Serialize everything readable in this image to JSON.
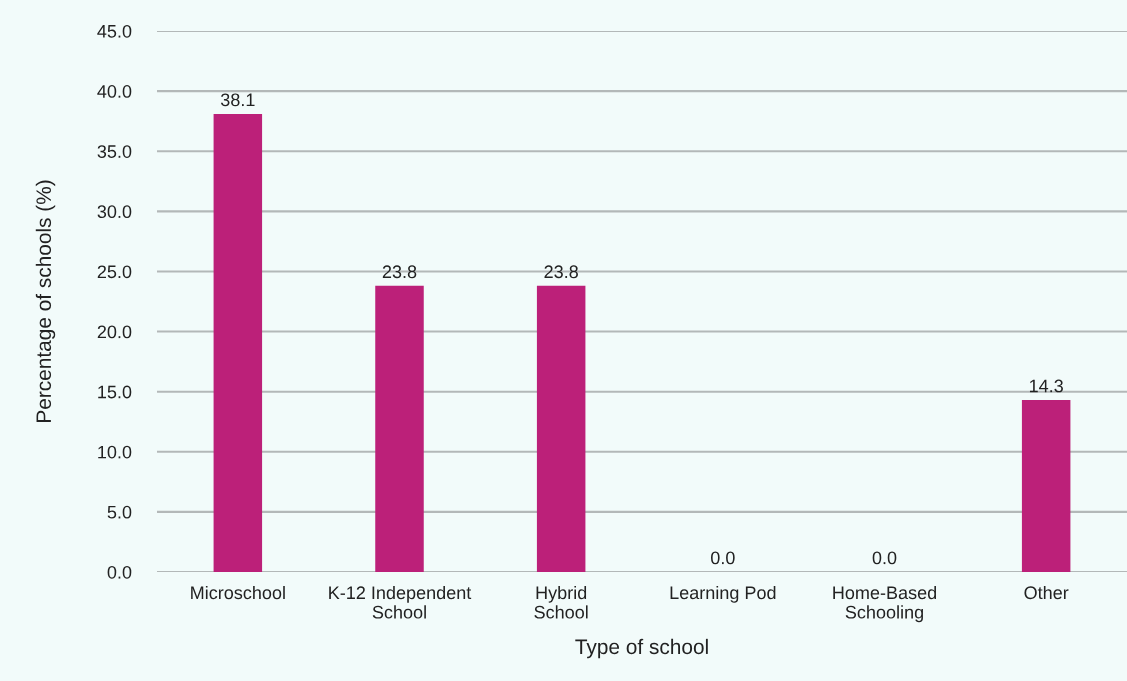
{
  "chart_data": {
    "type": "bar",
    "xlabel": "Type of school",
    "ylabel": "Percentage of schools (%)",
    "categories": [
      "Microschool",
      "K-12 Independent\nSchool",
      "Hybrid\nSchool",
      "Learning Pod",
      "Home-Based\nSchooling",
      "Other"
    ],
    "values": [
      38.1,
      23.8,
      23.8,
      0.0,
      0.0,
      14.3
    ],
    "value_labels": [
      "38.1",
      "23.8",
      "23.8",
      "0.0",
      "0.0",
      "14.3"
    ],
    "color": "#bc2079",
    "ylim": [
      0,
      45
    ],
    "yticks": [
      {
        "value": 0,
        "label": "0.0"
      },
      {
        "value": 5,
        "label": "5.0"
      },
      {
        "value": 10,
        "label": "10.0"
      },
      {
        "value": 15,
        "label": "15.0"
      },
      {
        "value": 20,
        "label": "20.0"
      },
      {
        "value": 25,
        "label": "25.0"
      },
      {
        "value": 30,
        "label": "30.0"
      },
      {
        "value": 35,
        "label": "35.0"
      },
      {
        "value": 40,
        "label": "40.0"
      },
      {
        "value": 45,
        "label": "45.0"
      }
    ],
    "grid": "y",
    "legend": false
  }
}
